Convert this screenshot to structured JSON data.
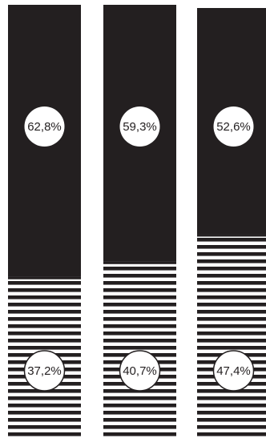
{
  "chart_data": {
    "type": "bar",
    "stacked": true,
    "percent": true,
    "categories": [
      "",
      "",
      ""
    ],
    "series": [
      {
        "name": "",
        "pattern": "solid",
        "color": "#231f20",
        "values": [
          62.8,
          59.3,
          52.6
        ],
        "labels": [
          "62,8%",
          "59,3%",
          "52,6%"
        ]
      },
      {
        "name": "",
        "pattern": "horizontal-stripes",
        "color": "#231f20",
        "values": [
          37.2,
          40.7,
          47.4
        ],
        "labels": [
          "37,2%",
          "40,7%",
          "47,4%"
        ]
      }
    ],
    "ylim": [
      0,
      100
    ],
    "grid": false,
    "legend": "none"
  }
}
